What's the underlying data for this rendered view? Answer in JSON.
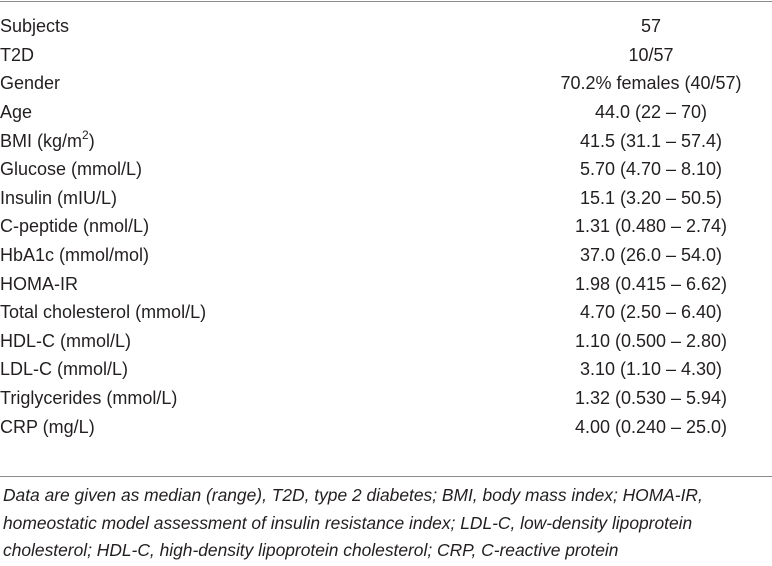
{
  "rows": [
    {
      "label": "Subjects",
      "value": "57"
    },
    {
      "label": "T2D",
      "value": "10/57"
    },
    {
      "label": "Gender",
      "value": "70.2% females (40/57)"
    },
    {
      "label": "Age",
      "value": "44.0 (22 – 70)"
    },
    {
      "label": "BMI (kg/m",
      "label_sup": "2",
      "label_after": ")",
      "value": "41.5 (31.1 – 57.4)"
    },
    {
      "label": "Glucose (mmol/L)",
      "value": "5.70 (4.70 – 8.10)"
    },
    {
      "label": "Insulin (mIU/L)",
      "value": "15.1 (3.20 – 50.5)"
    },
    {
      "label": "C-peptide (nmol/L)",
      "value": "1.31 (0.480 – 2.74)"
    },
    {
      "label": "HbA1c (mmol/mol)",
      "value": "37.0 (26.0 – 54.0)"
    },
    {
      "label": "HOMA-IR",
      "value": "1.98 (0.415 – 6.62)"
    },
    {
      "label": "Total cholesterol (mmol/L)",
      "value": "4.70 (2.50 – 6.40)"
    },
    {
      "label": "HDL-C (mmol/L)",
      "value": "1.10 (0.500 – 2.80)"
    },
    {
      "label": "LDL-C (mmol/L)",
      "value": "3.10 (1.10 – 4.30)"
    },
    {
      "label": "Triglycerides (mmol/L)",
      "value": "1.32 (0.530 – 5.94)"
    },
    {
      "label": "CRP (mg/L)",
      "value": "4.00 (0.240 – 25.0)"
    }
  ],
  "footnote": "Data are given as median (range), T2D, type 2 diabetes; BMI, body mass index; HOMA-IR, homeostatic model assessment of insulin resistance index; LDL-C, low-density lipoprotein cholesterol; HDL-C, high-density lipoprotein cholesterol; CRP, C-reactive protein"
}
